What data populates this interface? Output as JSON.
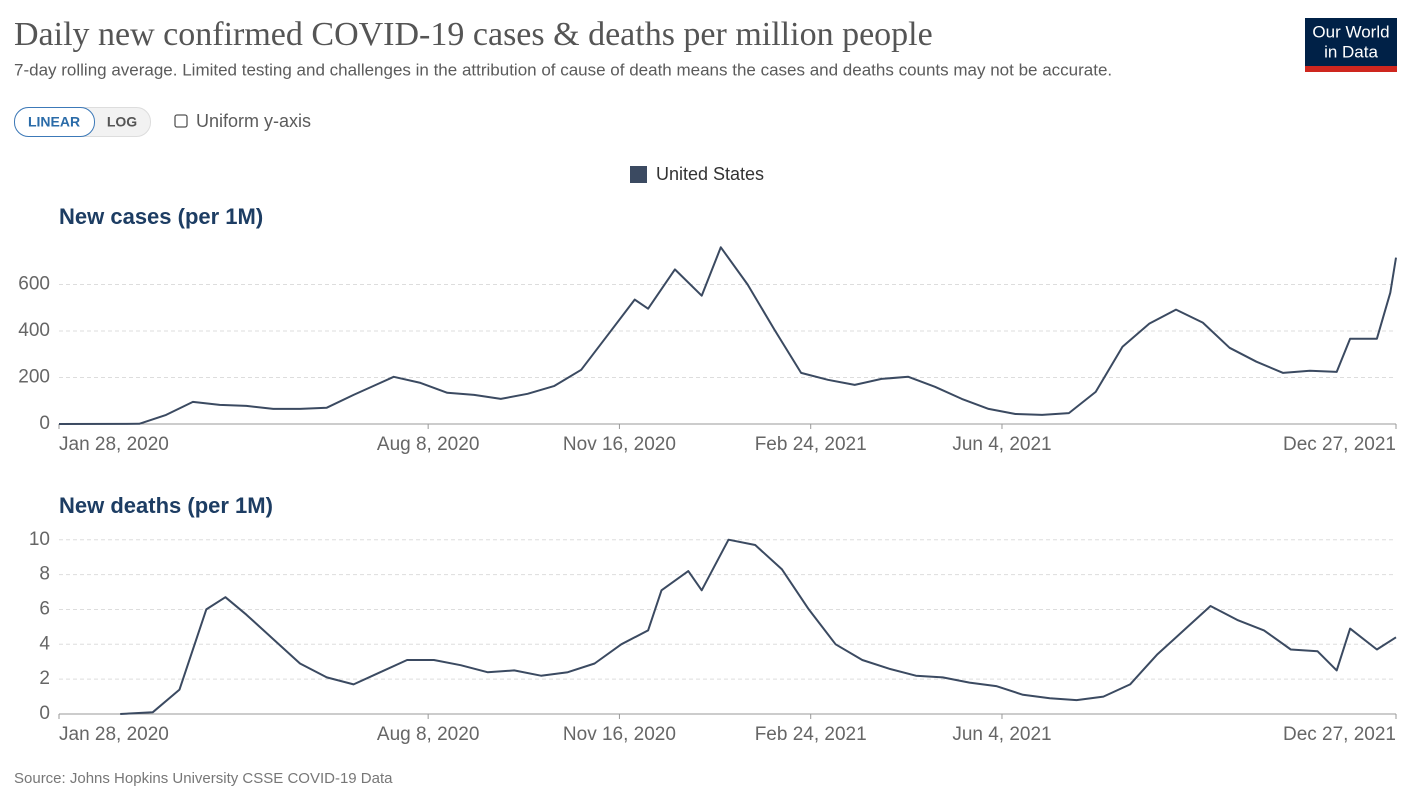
{
  "title": "Daily new confirmed COVID-19 cases & deaths per million people",
  "subtitle": "7-day rolling average. Limited testing and challenges in the attribution of cause of death means the cases and deaths counts may not be accurate.",
  "controls": {
    "linear": "LINEAR",
    "log": "LOG",
    "uniform": "Uniform y-axis"
  },
  "logo": [
    "Our World",
    "in Data"
  ],
  "source": "Source: Johns Hopkins University CSSE COVID-19 Data",
  "chart_data": [
    {
      "type": "line",
      "title": "New cases (per 1M)",
      "x": [
        "2020-01-28",
        "2020-03-10",
        "2020-03-24",
        "2020-04-07",
        "2020-04-21",
        "2020-05-05",
        "2020-05-19",
        "2020-06-02",
        "2020-06-16",
        "2020-06-30",
        "2020-07-14",
        "2020-07-21",
        "2020-08-04",
        "2020-08-18",
        "2020-09-01",
        "2020-09-15",
        "2020-09-29",
        "2020-10-13",
        "2020-10-27",
        "2020-11-10",
        "2020-11-24",
        "2020-12-01",
        "2020-12-15",
        "2020-12-29",
        "2021-01-08",
        "2021-01-22",
        "2021-02-05",
        "2021-02-19",
        "2021-03-05",
        "2021-03-19",
        "2021-04-02",
        "2021-04-16",
        "2021-04-30",
        "2021-05-14",
        "2021-05-28",
        "2021-06-11",
        "2021-06-25",
        "2021-07-09",
        "2021-07-23",
        "2021-08-06",
        "2021-08-20",
        "2021-09-03",
        "2021-09-17",
        "2021-10-01",
        "2021-10-15",
        "2021-10-29",
        "2021-11-12",
        "2021-11-26",
        "2021-12-03",
        "2021-12-17",
        "2021-12-24",
        "2021-12-27"
      ],
      "series": [
        {
          "name": "United States",
          "color": "#3b4a61",
          "values": [
            0,
            1,
            39,
            95,
            82,
            78,
            65,
            65,
            70,
            125,
            177,
            203,
            177,
            134,
            125,
            108,
            130,
            164,
            233,
            384,
            535,
            496,
            665,
            552,
            760,
            600,
            406,
            220,
            190,
            168,
            194,
            203,
            160,
            108,
            65,
            43,
            39,
            47,
            138,
            332,
            432,
            492,
            436,
            328,
            268,
            220,
            229,
            224,
            367,
            367,
            565,
            716
          ]
        }
      ],
      "xlim": [
        "2020-01-28",
        "2021-12-27"
      ],
      "xticks": [
        {
          "value": "2020-01-28",
          "label": "Jan 28, 2020"
        },
        {
          "value": "2020-08-08",
          "label": "Aug 8, 2020"
        },
        {
          "value": "2020-11-16",
          "label": "Nov 16, 2020"
        },
        {
          "value": "2021-02-24",
          "label": "Feb 24, 2021"
        },
        {
          "value": "2021-06-04",
          "label": "Jun 4, 2021"
        },
        {
          "value": "2021-12-27",
          "label": "Dec 27, 2021"
        }
      ],
      "ylim": [
        0,
        770
      ],
      "yticks": [
        0,
        200,
        400,
        600
      ],
      "grid": true
    },
    {
      "type": "line",
      "title": "New deaths (per 1M)",
      "x": [
        "2020-02-29",
        "2020-03-17",
        "2020-03-31",
        "2020-04-14",
        "2020-04-24",
        "2020-05-05",
        "2020-05-19",
        "2020-06-02",
        "2020-06-16",
        "2020-06-30",
        "2020-07-14",
        "2020-07-28",
        "2020-08-11",
        "2020-08-25",
        "2020-09-08",
        "2020-09-22",
        "2020-10-06",
        "2020-10-20",
        "2020-11-03",
        "2020-11-17",
        "2020-12-01",
        "2020-12-08",
        "2020-12-22",
        "2020-12-29",
        "2021-01-12",
        "2021-01-26",
        "2021-02-09",
        "2021-02-23",
        "2021-03-09",
        "2021-03-23",
        "2021-04-06",
        "2021-04-20",
        "2021-05-04",
        "2021-05-18",
        "2021-06-01",
        "2021-06-15",
        "2021-06-29",
        "2021-07-13",
        "2021-07-27",
        "2021-08-10",
        "2021-08-24",
        "2021-09-07",
        "2021-09-21",
        "2021-10-05",
        "2021-10-19",
        "2021-11-02",
        "2021-11-16",
        "2021-11-26",
        "2021-12-03",
        "2021-12-17",
        "2021-12-27"
      ],
      "series": [
        {
          "color": "#3b4a61",
          "values": [
            0,
            0.1,
            1.4,
            6.0,
            6.7,
            5.7,
            4.3,
            2.9,
            2.1,
            1.7,
            2.4,
            3.1,
            3.1,
            2.8,
            2.4,
            2.5,
            2.2,
            2.4,
            2.9,
            4.0,
            4.8,
            7.1,
            8.2,
            7.1,
            10.0,
            9.7,
            8.3,
            6.0,
            4.0,
            3.1,
            2.6,
            2.2,
            2.1,
            1.8,
            1.6,
            1.1,
            0.9,
            0.8,
            1.0,
            1.7,
            3.4,
            4.8,
            6.2,
            5.4,
            4.8,
            3.7,
            3.6,
            2.5,
            4.9,
            3.7,
            4.4
          ]
        }
      ],
      "xlim": [
        "2020-01-28",
        "2021-12-27"
      ],
      "xticks": [
        {
          "value": "2020-01-28",
          "label": "Jan 28, 2020"
        },
        {
          "value": "2020-08-08",
          "label": "Aug 8, 2020"
        },
        {
          "value": "2020-11-16",
          "label": "Nov 16, 2020"
        },
        {
          "value": "2021-02-24",
          "label": "Feb 24, 2021"
        },
        {
          "value": "2021-06-04",
          "label": "Jun 4, 2021"
        },
        {
          "value": "2021-12-27",
          "label": "Dec 27, 2021"
        }
      ],
      "ylim": [
        0,
        10.1
      ],
      "yticks": [
        0,
        2,
        4,
        6,
        8,
        10
      ],
      "grid": true
    }
  ]
}
